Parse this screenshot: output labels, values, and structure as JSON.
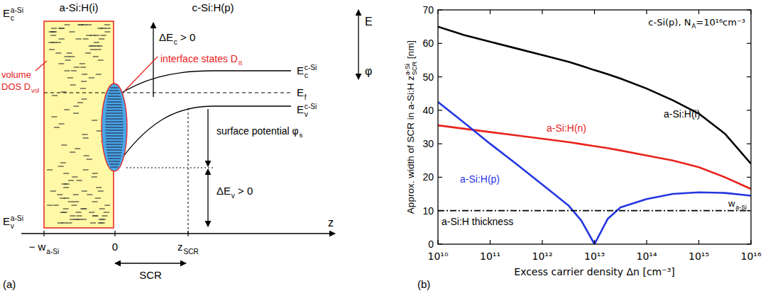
{
  "diagram": {
    "panel_letter": "(a)",
    "layer_left": "a-Si:H(i)",
    "layer_right": "c-Si:H(p)",
    "ec_asi": {
      "text": "E",
      "sub": "c",
      "sup": "a-Si"
    },
    "ev_asi": {
      "text": "E",
      "sub": "v",
      "sup": "a-Si"
    },
    "ec_csi": {
      "text": "E",
      "sub": "c",
      "sup": "c-Si"
    },
    "ev_csi": {
      "text": "E",
      "sub": "v",
      "sup": "c-Si"
    },
    "ef": {
      "text": "E",
      "sub": "f"
    },
    "delta_ec": {
      "text": "ΔE",
      "sub": "c",
      "after": " > 0"
    },
    "delta_ev": {
      "text": "ΔE",
      "sub": "v",
      "after": " > 0"
    },
    "surface_potential": {
      "text": "surface potential φ",
      "sub": "s"
    },
    "volume_dos": [
      {
        "text": "volume"
      },
      {
        "text": "DOS D",
        "sub": "vol"
      }
    ],
    "interface_states": {
      "text": "interface states D",
      "sub": "It"
    },
    "energy_axis": {
      "text": "E"
    },
    "potential_axis": {
      "text": "φ"
    },
    "z_axis": {
      "text": "z"
    },
    "z_ticks": [
      {
        "text": "− w",
        "sub": "a-Si"
      },
      {
        "text": "0"
      },
      {
        "text": "z",
        "sub": "SCR"
      }
    ],
    "scr": {
      "text": "SCR"
    }
  },
  "chart_data": {
    "type": "line",
    "xlabel": "Excess carrier density Δn [cm⁻³]",
    "ylabel": {
      "text": "Approx. width of SCR in a-Si:H z",
      "sub": "SCR",
      "sup": "a-Si",
      "after": " [nm]"
    },
    "annotations": [
      {
        "text": "c-Si(p), N",
        "sub": "A",
        "after": "=10¹⁶cm⁻³"
      },
      {
        "text": "w",
        "sub": "a-Si"
      },
      {
        "text": "(b)"
      }
    ],
    "log": "x",
    "grid": false,
    "xlim": [
      10000000000.0,
      1e+16
    ],
    "xticks": [
      {
        "value": 10000000000.0,
        "label": "10¹⁰"
      },
      {
        "value": 100000000000.0,
        "label": "10¹¹"
      },
      {
        "value": 1000000000000.0,
        "label": "10¹²"
      },
      {
        "value": 10000000000000.0,
        "label": "10¹³"
      },
      {
        "value": 100000000000000.0,
        "label": "10¹⁴"
      },
      {
        "value": 1000000000000000.0,
        "label": "10¹⁵"
      },
      {
        "value": 1e+16,
        "label": "10¹⁶"
      }
    ],
    "ylim": [
      0,
      70
    ],
    "yticks": [
      0,
      10,
      20,
      30,
      40,
      50,
      60,
      70
    ],
    "x": [
      10000000000.0,
      31600000000.0,
      100000000000.0,
      316000000000.0,
      1000000000000.0,
      3160000000000.0,
      5620000000000.0,
      10000000000000.0,
      17800000000000.0,
      31600000000000.0,
      100000000000000.0,
      316000000000000.0,
      1000000000000000.0,
      3160000000000000.0,
      1e+16
    ],
    "series": [
      {
        "name": "a-Si:H(i)",
        "color": "#000000",
        "line_style": "solid",
        "values": [
          65,
          62.5,
          60.5,
          58.5,
          56.5,
          54.5,
          53.3,
          52,
          50.8,
          49.5,
          46.5,
          43,
          39,
          33,
          24
        ]
      },
      {
        "name": "a-Si:H(n)",
        "color": "#e8231c",
        "line_style": "solid",
        "values": [
          35.5,
          34.5,
          33.5,
          32.5,
          31.5,
          30.5,
          29.9,
          29.3,
          28.7,
          28,
          26.5,
          25,
          23,
          20,
          16.5
        ]
      },
      {
        "name": "a-Si:H(p)",
        "color": "#2436e0",
        "line_style": "solid",
        "values": [
          42.5,
          36.3,
          30,
          24,
          17.8,
          11.6,
          7,
          0,
          7.5,
          11,
          13.5,
          15,
          15.5,
          15.3,
          14.5
        ]
      },
      {
        "name": "a-Si:H thickness",
        "color": "#000000",
        "line_style": "dashdot",
        "values": [
          10,
          10,
          10,
          10,
          10,
          10,
          10,
          10,
          10,
          10,
          10,
          10,
          10,
          10,
          10
        ]
      }
    ]
  }
}
